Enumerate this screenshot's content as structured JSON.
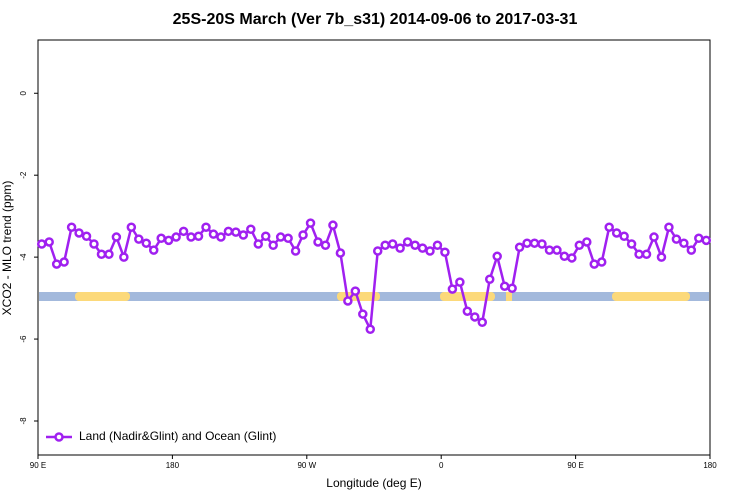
{
  "chart_data": {
    "type": "line",
    "title": "25S-20S March (Ver 7b_s31)   2014-09-06 to 2017-03-31",
    "x_label": "Longitude (deg E)",
    "y_label": "XCO2 - MLO trend (ppm)",
    "x": [
      92.5,
      97.5,
      102.5,
      107.5,
      112.5,
      117.5,
      122.5,
      127.5,
      132.5,
      137.5,
      142.5,
      147.5,
      152.5,
      157.5,
      162.5,
      167.5,
      172.5,
      177.5,
      182.5,
      187.5,
      192.5,
      197.5,
      202.5,
      207.5,
      212.5,
      217.5,
      222.5,
      227.5,
      232.5,
      237.5,
      242.5,
      247.5,
      252.5,
      257.5,
      262.5,
      267.5,
      272.5,
      277.5,
      282.5,
      287.5,
      292.5,
      297.5,
      302.5,
      307.5,
      312.5,
      317.5,
      322.5,
      327.5,
      332.5,
      337.5,
      342.5,
      347.5,
      352.5,
      357.5,
      362.5,
      367.5,
      372.5,
      377.5,
      382.5,
      387.5,
      392.5,
      397.5,
      402.5,
      407.5,
      412.5,
      417.5,
      422.5,
      427.5,
      432.5,
      437.5,
      442.5,
      447.5,
      452.5,
      457.5,
      462.5,
      467.5,
      472.5,
      477.5,
      482.5,
      487.5,
      492.5,
      497.5,
      502.5,
      507.5,
      512.5,
      517.5,
      522.5,
      527.5,
      532.5,
      537.5
    ],
    "series": [
      {
        "name": "Land (Nadir&Glint) and Ocean (Glint)",
        "color": "#a020f0",
        "values": [
          -3.68,
          -3.63,
          -4.17,
          -4.12,
          -3.27,
          -3.41,
          -3.49,
          -3.68,
          -3.93,
          -3.93,
          -3.51,
          -4.0,
          -3.27,
          -3.56,
          -3.66,
          -3.83,
          -3.54,
          -3.59,
          -3.51,
          -3.37,
          -3.51,
          -3.49,
          -3.27,
          -3.44,
          -3.51,
          -3.37,
          -3.39,
          -3.46,
          -3.32,
          -3.68,
          -3.49,
          -3.71,
          -3.51,
          -3.54,
          -3.85,
          -3.46,
          -3.17,
          -3.63,
          -3.71,
          -3.22,
          -3.9,
          -5.07,
          -4.83,
          -5.39,
          -5.76,
          -3.85,
          -3.71,
          -3.68,
          -3.78,
          -3.63,
          -3.71,
          -3.78,
          -3.85,
          -3.71,
          -3.88,
          -4.78,
          -4.61,
          -5.32,
          -5.46,
          -5.59,
          -4.54,
          -3.98,
          -4.71,
          -4.76,
          -3.76,
          -3.66,
          -3.66,
          -3.68,
          -3.83,
          -3.83,
          -3.98,
          -4.02,
          -3.71,
          -3.63,
          -4.17,
          -4.12,
          -3.27,
          -3.41,
          -3.49,
          -3.68,
          -3.93,
          -3.93,
          -3.51,
          -4.0,
          -3.27,
          -3.56,
          -3.66,
          -3.83,
          -3.54,
          -3.59
        ]
      }
    ],
    "xlim": [
      90,
      540
    ],
    "xticks": [
      {
        "value": 90,
        "label": "90 E"
      },
      {
        "value": 180,
        "label": "180"
      },
      {
        "value": 270,
        "label": "90 W"
      },
      {
        "value": 360,
        "label": "0"
      },
      {
        "value": 450,
        "label": "90 E"
      },
      {
        "value": 540,
        "label": "180"
      }
    ],
    "ylim": [
      -8.83,
      1.3
    ],
    "yticks": [
      0,
      -2,
      -4,
      -6,
      -8
    ],
    "legend": "bottom-left"
  }
}
